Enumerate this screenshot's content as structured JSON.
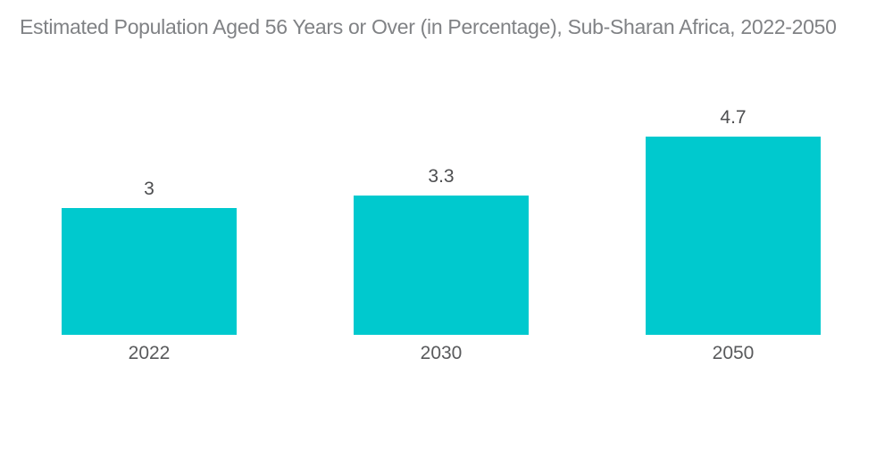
{
  "title": "Estimated Population Aged 56 Years or Over (in Percentage), Sub-Sharan Africa, 2022-2050",
  "colors": {
    "bar": "#00C9CE",
    "title_text": "#808285",
    "value_text": "#4D4E50",
    "axis_text": "#595A5C",
    "background": "#FFFFFF"
  },
  "chart_data": {
    "type": "bar",
    "title": "Estimated Population Aged 56 Years or Over (in Percentage), Sub-Sharan Africa, 2022-2050",
    "categories": [
      "2022",
      "2030",
      "2050"
    ],
    "values": [
      3,
      3.3,
      4.7
    ],
    "data_labels": [
      "3",
      "3.3",
      "4.7"
    ],
    "xlabel": "",
    "ylabel": "",
    "ylim": [
      0,
      5
    ],
    "grid": false,
    "legend": "none",
    "axes_visible": false,
    "bar_color": "#00C9CE"
  }
}
